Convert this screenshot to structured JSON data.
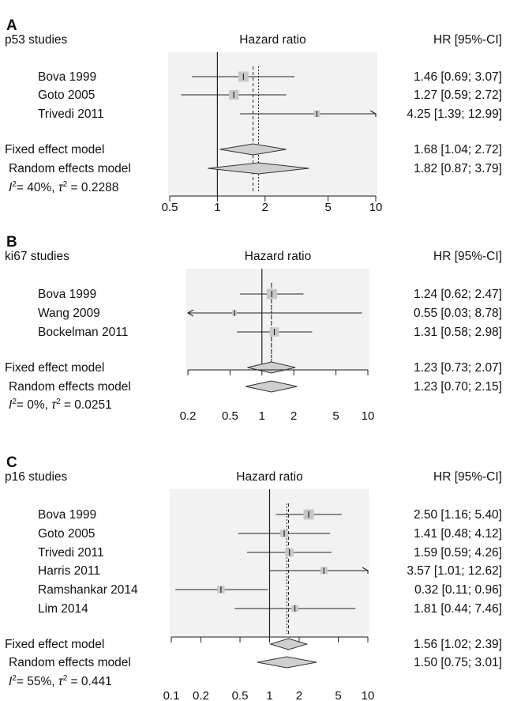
{
  "chart_data": [
    {
      "type": "forest",
      "panel_label": "A",
      "title": "p53 studies",
      "axis_title": "Hazard ratio",
      "value_header": "HR [95%-CI]",
      "x_scale": "log",
      "xlim": [
        0.5,
        10
      ],
      "x_ticks": [
        0.5,
        1,
        2,
        5,
        10
      ],
      "x_tick_labels": [
        "0.5",
        "1",
        "2",
        "5",
        "10"
      ],
      "studies": [
        {
          "name": "Bova 1999",
          "hr": 1.46,
          "lower": 0.69,
          "upper": 3.07,
          "hr_text": "1.46 [0.69; 3.07]",
          "weight": 0.5
        },
        {
          "name": "Goto 2005",
          "hr": 1.27,
          "lower": 0.59,
          "upper": 2.72,
          "hr_text": "1.27 [0.59; 2.72]",
          "weight": 0.45
        },
        {
          "name": "Trivedi 2011",
          "hr": 4.25,
          "lower": 1.39,
          "upper": 12.99,
          "hr_text": "4.25 [1.39; 12.99]",
          "weight": 0.2
        }
      ],
      "fixed": {
        "name": "Fixed effect model",
        "hr": 1.68,
        "lower": 1.04,
        "upper": 2.72,
        "hr_text": "1.68 [1.04; 2.72]"
      },
      "random": {
        "name": "Random effects model",
        "hr": 1.82,
        "lower": 0.87,
        "upper": 3.79,
        "hr_text": "1.82 [0.87; 3.79]"
      },
      "heterogeneity": {
        "i2": "= 40%,",
        "tau2": "= 0.2288"
      }
    },
    {
      "type": "forest",
      "panel_label": "B",
      "title": "ki67 studies",
      "axis_title": "Hazard ratio",
      "value_header": "HR [95%-CI]",
      "x_scale": "log",
      "xlim": [
        0.2,
        10
      ],
      "x_ticks": [
        0.2,
        0.5,
        1,
        2,
        5,
        10
      ],
      "x_tick_labels": [
        "0.2",
        "0.5",
        "1",
        "2",
        "5",
        "10"
      ],
      "studies": [
        {
          "name": "Bova 1999",
          "hr": 1.24,
          "lower": 0.62,
          "upper": 2.47,
          "hr_text": "1.24 [0.62; 2.47]",
          "weight": 0.5
        },
        {
          "name": "Wang 2009",
          "hr": 0.55,
          "lower": 0.03,
          "upper": 8.78,
          "hr_text": "0.55 [0.03; 8.78]",
          "weight": 0.08
        },
        {
          "name": "Bockelman 2011",
          "hr": 1.31,
          "lower": 0.58,
          "upper": 2.98,
          "hr_text": "1.31 [0.58; 2.98]",
          "weight": 0.42
        }
      ],
      "fixed": {
        "name": "Fixed effect model",
        "hr": 1.23,
        "lower": 0.73,
        "upper": 2.07,
        "hr_text": "1.23 [0.73; 2.07]"
      },
      "random": {
        "name": "Random effects model",
        "hr": 1.23,
        "lower": 0.7,
        "upper": 2.15,
        "hr_text": "1.23 [0.70; 2.15]"
      },
      "heterogeneity": {
        "i2": "= 0%,",
        "tau2": "= 0.0251"
      }
    },
    {
      "type": "forest",
      "panel_label": "C",
      "title": "p16 studies",
      "axis_title": "Hazard ratio",
      "value_header": "HR [95%-CI]",
      "x_scale": "log",
      "xlim": [
        0.1,
        10
      ],
      "x_ticks": [
        0.1,
        0.2,
        0.5,
        1,
        2,
        5,
        10
      ],
      "x_tick_labels": [
        "0.1",
        "0.2",
        "0.5",
        "1",
        "2",
        "5",
        "10"
      ],
      "studies": [
        {
          "name": "Bova 1999",
          "hr": 2.5,
          "lower": 1.16,
          "upper": 5.4,
          "hr_text": "2.50 [1.16; 5.40]",
          "weight": 0.5
        },
        {
          "name": "Goto 2005",
          "hr": 1.41,
          "lower": 0.48,
          "upper": 4.12,
          "hr_text": "1.41 [0.48; 4.12]",
          "weight": 0.3
        },
        {
          "name": "Trivedi 2011",
          "hr": 1.59,
          "lower": 0.59,
          "upper": 4.26,
          "hr_text": "1.59 [0.59; 4.26]",
          "weight": 0.35
        },
        {
          "name": "Harris 2011",
          "hr": 3.57,
          "lower": 1.01,
          "upper": 12.62,
          "hr_text": "3.57 [1.01; 12.62]",
          "weight": 0.25
        },
        {
          "name": "Ramshankar 2014",
          "hr": 0.32,
          "lower": 0.11,
          "upper": 0.96,
          "hr_text": "0.32 [0.11; 0.96]",
          "weight": 0.28
        },
        {
          "name": "Lim 2014",
          "hr": 1.81,
          "lower": 0.44,
          "upper": 7.46,
          "hr_text": "1.81 [0.44; 7.46]",
          "weight": 0.22
        }
      ],
      "fixed": {
        "name": "Fixed effect model",
        "hr": 1.56,
        "lower": 1.02,
        "upper": 2.39,
        "hr_text": "1.56 [1.02; 2.39]"
      },
      "random": {
        "name": "Random effects model",
        "hr": 1.5,
        "lower": 0.75,
        "upper": 3.01,
        "hr_text": "1.50 [0.75; 3.01]"
      },
      "heterogeneity": {
        "i2": "= 55%,",
        "tau2": "= 0.441"
      }
    }
  ]
}
